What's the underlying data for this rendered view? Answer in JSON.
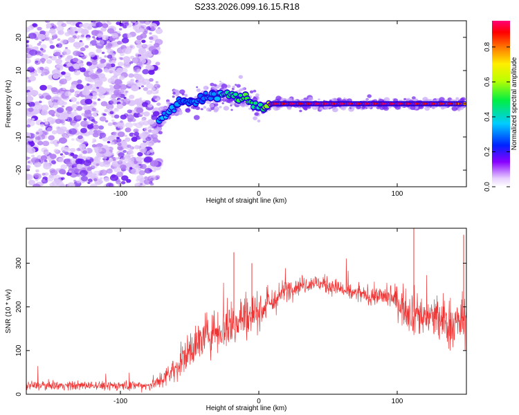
{
  "title": "S233.2026.099.16.15.R18",
  "colors": {
    "snr_line": "#ee3333",
    "noise_blob": "#8844ee",
    "axis": "#000000"
  },
  "chart_data": [
    {
      "type": "heatmap",
      "xlabel": "Height of straight line (km)",
      "ylabel": "Frequency (Hz)",
      "xlim": [
        -168,
        150
      ],
      "ylim": [
        -25,
        25
      ],
      "x_ticks": [
        -100,
        0,
        100
      ],
      "y_ticks": [
        -20,
        -10,
        0,
        10,
        20
      ],
      "grid": false,
      "colorbar": {
        "label": "Normalized spectral amplitude",
        "range": [
          0,
          0.95
        ],
        "ticks": [
          0.0,
          0.2,
          0.4,
          0.6,
          0.8
        ]
      },
      "noise_region_x": [
        -168,
        -72
      ],
      "signal_track": {
        "x": [
          -72,
          -64,
          -56,
          -48,
          -40,
          -32,
          -24,
          -16,
          -8,
          0,
          4,
          10,
          20,
          40,
          60,
          80,
          100,
          120,
          140,
          150
        ],
        "y": [
          -5,
          -2,
          1,
          0,
          2,
          2,
          3,
          2,
          1,
          -1,
          -1,
          0,
          0,
          0,
          0,
          0,
          0,
          0,
          0,
          0
        ],
        "amplitude": [
          0.35,
          0.35,
          0.3,
          0.3,
          0.3,
          0.35,
          0.45,
          0.5,
          0.55,
          0.45,
          0.5,
          0.9,
          0.95,
          0.95,
          0.95,
          0.95,
          0.95,
          0.95,
          0.9,
          0.8
        ]
      }
    },
    {
      "type": "line",
      "xlabel": "Height of straight line (km)",
      "ylabel": "SNR (10 * v/v)",
      "xlim": [
        -168,
        150
      ],
      "ylim": [
        0,
        380
      ],
      "x_ticks": [
        -100,
        0,
        100
      ],
      "y_ticks": [
        0,
        100,
        200,
        300
      ],
      "grid": false,
      "series": [
        {
          "x": [
            -168,
            -120,
            -80,
            -70,
            -60,
            -50,
            -40,
            -30,
            -20,
            -16,
            -10,
            0,
            10,
            20,
            30,
            40,
            50,
            60,
            70,
            80,
            90,
            100,
            104,
            110,
            120,
            130,
            140,
            150
          ],
          "mean": [
            20,
            20,
            20,
            30,
            60,
            100,
            130,
            150,
            160,
            165,
            180,
            190,
            210,
            240,
            250,
            255,
            250,
            240,
            230,
            225,
            225,
            215,
            200,
            190,
            180,
            170,
            160,
            170
          ],
          "noise": [
            10,
            10,
            12,
            20,
            30,
            45,
            50,
            55,
            60,
            60,
            55,
            40,
            35,
            25,
            20,
            20,
            20,
            20,
            20,
            20,
            25,
            35,
            45,
            50,
            55,
            60,
            60,
            60
          ]
        }
      ],
      "spikes": [
        [
          -18,
          325
        ],
        [
          -5,
          300
        ],
        [
          112,
          380
        ],
        [
          148,
          365
        ]
      ]
    }
  ]
}
